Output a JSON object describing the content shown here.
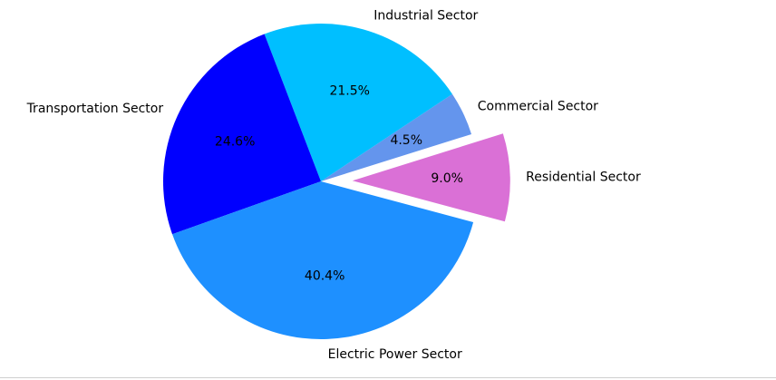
{
  "chart_data": {
    "type": "pie",
    "slices": [
      {
        "label": "Residential Sector",
        "value": 9.0,
        "pct_label": "9.0%",
        "color": "#da70d6",
        "explode": true
      },
      {
        "label": "Commercial Sector",
        "value": 4.5,
        "pct_label": "4.5%",
        "color": "#6495ed",
        "explode": false
      },
      {
        "label": "Industrial Sector",
        "value": 21.5,
        "pct_label": "21.5%",
        "color": "#00bfff",
        "explode": false
      },
      {
        "label": "Transportation Sector",
        "value": 24.6,
        "pct_label": "24.6%",
        "color": "#0000ff",
        "explode": false
      },
      {
        "label": "Electric Power Sector",
        "value": 40.4,
        "pct_label": "40.4%",
        "color": "#1e90ff",
        "explode": false
      }
    ],
    "legend": "none"
  }
}
